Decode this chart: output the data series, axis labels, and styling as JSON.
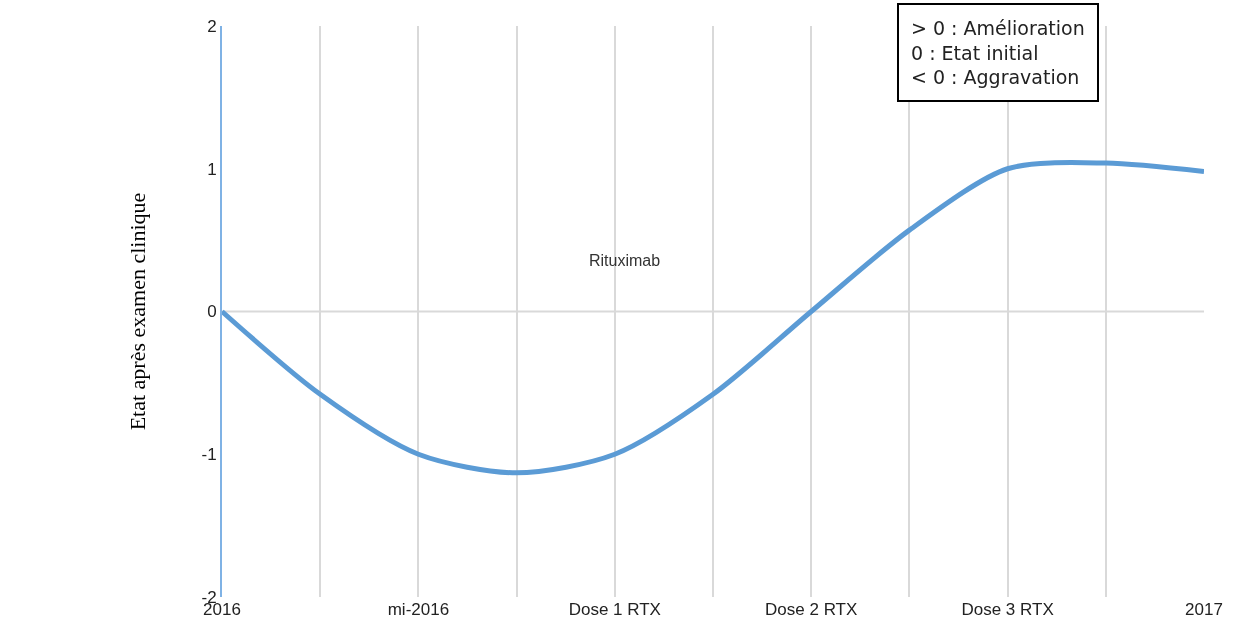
{
  "chart_data": {
    "type": "line",
    "ylabel": "Etat après examen clinique",
    "categories": [
      "2016",
      null,
      "mi-2016",
      null,
      "Dose 1 RTX",
      null,
      "Dose 2 RTX",
      null,
      "Dose 3 RTX",
      null,
      "2017"
    ],
    "series": [
      {
        "color": "#5b9bd5",
        "values": [
          0,
          -0.58,
          -1,
          -1.13,
          -1,
          -0.58,
          0,
          0.57,
          1,
          1.04,
          0.98
        ]
      }
    ],
    "ylim": [
      -2,
      2
    ],
    "yticks": [
      -2,
      -1,
      0,
      1,
      2
    ],
    "grid": "x",
    "marker": "none",
    "line_style": "solid",
    "ref_lines": [
      {
        "axis": "y",
        "value": 0,
        "color": "#d9d9d9"
      }
    ],
    "annotations": [
      "Rituximab",
      "> 0 : Amélioration\n0 : Etat initial\n< 0 : Aggravation"
    ]
  }
}
